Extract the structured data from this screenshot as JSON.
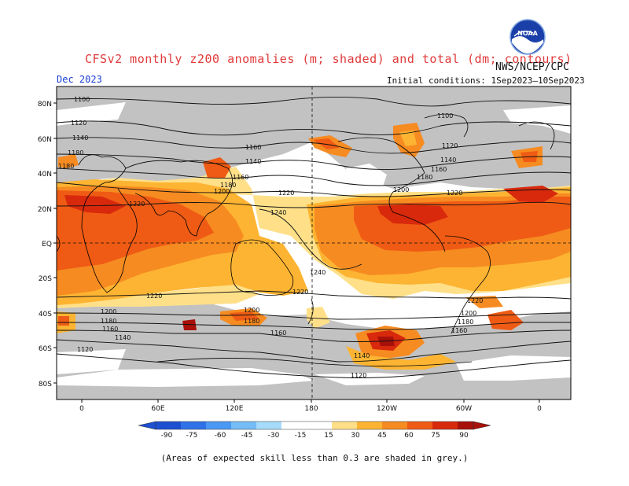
{
  "header": {
    "title": "CFSv2 monthly z200 anomalies (m; shaded) and total (dm; contours)",
    "agency": "NWS/NCEP/CPC",
    "valid_month": "Dec 2023",
    "initial_conditions": "Initial conditions: 1Sep2023–10Sep2023",
    "logo_text": "NOAA"
  },
  "map": {
    "lat_labels": [
      "80N",
      "60N",
      "40N",
      "20N",
      "EQ",
      "20S",
      "40S",
      "60S",
      "80S"
    ],
    "lon_labels": [
      "0",
      "60E",
      "120E",
      "180",
      "120W",
      "60W",
      "0"
    ],
    "colors": {
      "grey": "#c2c2c2",
      "ocean_bg": "#ffffff",
      "c15": "#ffe089",
      "c30": "#fdb432",
      "c45": "#f68b21",
      "c60": "#ef5b14",
      "c75": "#d8290d",
      "c90": "#a8100a"
    },
    "contour_labels": [
      "1100",
      "1120",
      "1140",
      "1160",
      "1180",
      "1200",
      "1220",
      "1240"
    ]
  },
  "colorbar": {
    "ticks": [
      "-90",
      "-75",
      "-60",
      "-45",
      "-30",
      "-15",
      "15",
      "30",
      "45",
      "60",
      "75",
      "90"
    ],
    "colors": [
      "#1d4fd1",
      "#2f72e8",
      "#4a98f3",
      "#76bcf7",
      "#a6dbfb",
      "#ffffff",
      "#ffe089",
      "#fdb432",
      "#f68b21",
      "#ef5b14",
      "#d8290d",
      "#a8100a"
    ],
    "neg_arrow_color": "#1d4fd1",
    "pos_arrow_color": "#a8100a"
  },
  "footnote": "(Areas of expected skill less than 0.3 are shaded in grey.)"
}
